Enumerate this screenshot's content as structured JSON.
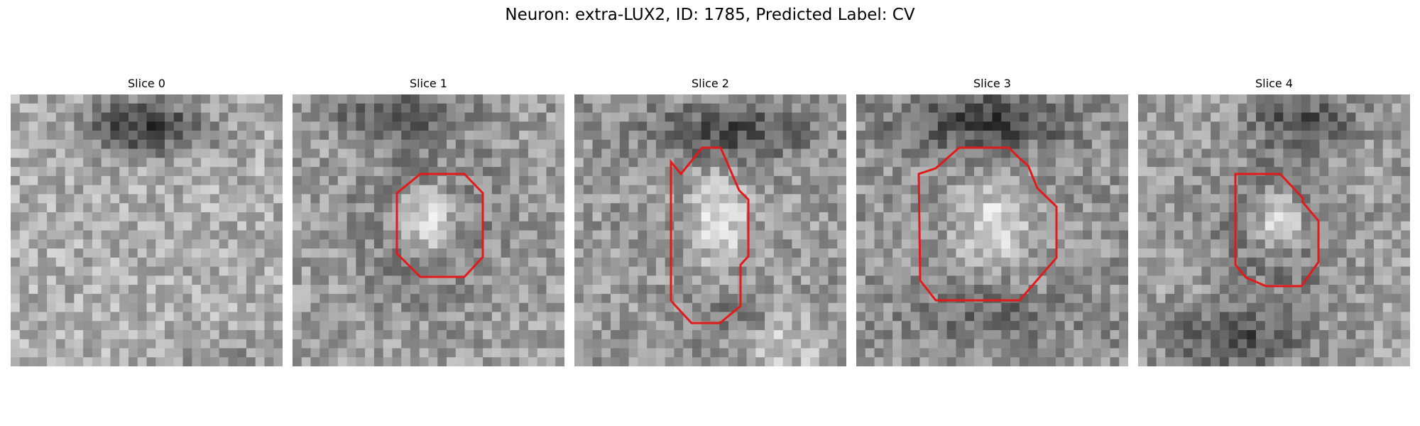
{
  "figure": {
    "title": "Neuron: extra-LUX2, ID: 1785, Predicted Label: CV"
  },
  "panels": [
    {
      "title": "Slice 0",
      "has_contour": false
    },
    {
      "title": "Slice 1",
      "has_contour": true
    },
    {
      "title": "Slice 2",
      "has_contour": true
    },
    {
      "title": "Slice 3",
      "has_contour": true
    },
    {
      "title": "Slice 4",
      "has_contour": true
    }
  ],
  "contour_color": "#e31a1c",
  "colormap": "grayscale"
}
